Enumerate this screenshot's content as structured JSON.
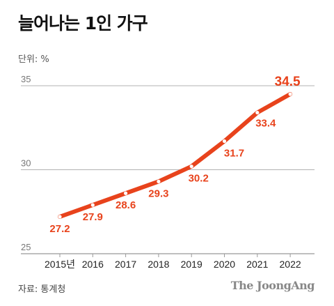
{
  "colors": {
    "line": "#e8431c",
    "label": "#e8431c",
    "grid": "#999999",
    "marker_fill": "#ffffff"
  },
  "footer": {
    "source": "자료: 통계청",
    "logo": "The JoongAng"
  },
  "chart_data": {
    "type": "line",
    "title": "늘어나는 1인 가구",
    "unit_label": "단위: %",
    "categories": [
      "2015년",
      "2016",
      "2017",
      "2018",
      "2019",
      "2020",
      "2021",
      "2022"
    ],
    "values": [
      27.2,
      27.9,
      28.6,
      29.3,
      30.2,
      31.7,
      33.4,
      34.5
    ],
    "value_labels": [
      "27.2",
      "27.9",
      "28.6",
      "29.3",
      "30.2",
      "31.7",
      "33.4",
      "34.5"
    ],
    "yticks": [
      25,
      30,
      35
    ],
    "ytick_labels": [
      "25",
      "30",
      "35"
    ],
    "ylim": [
      25,
      35
    ],
    "grid": true,
    "legend": "none"
  }
}
